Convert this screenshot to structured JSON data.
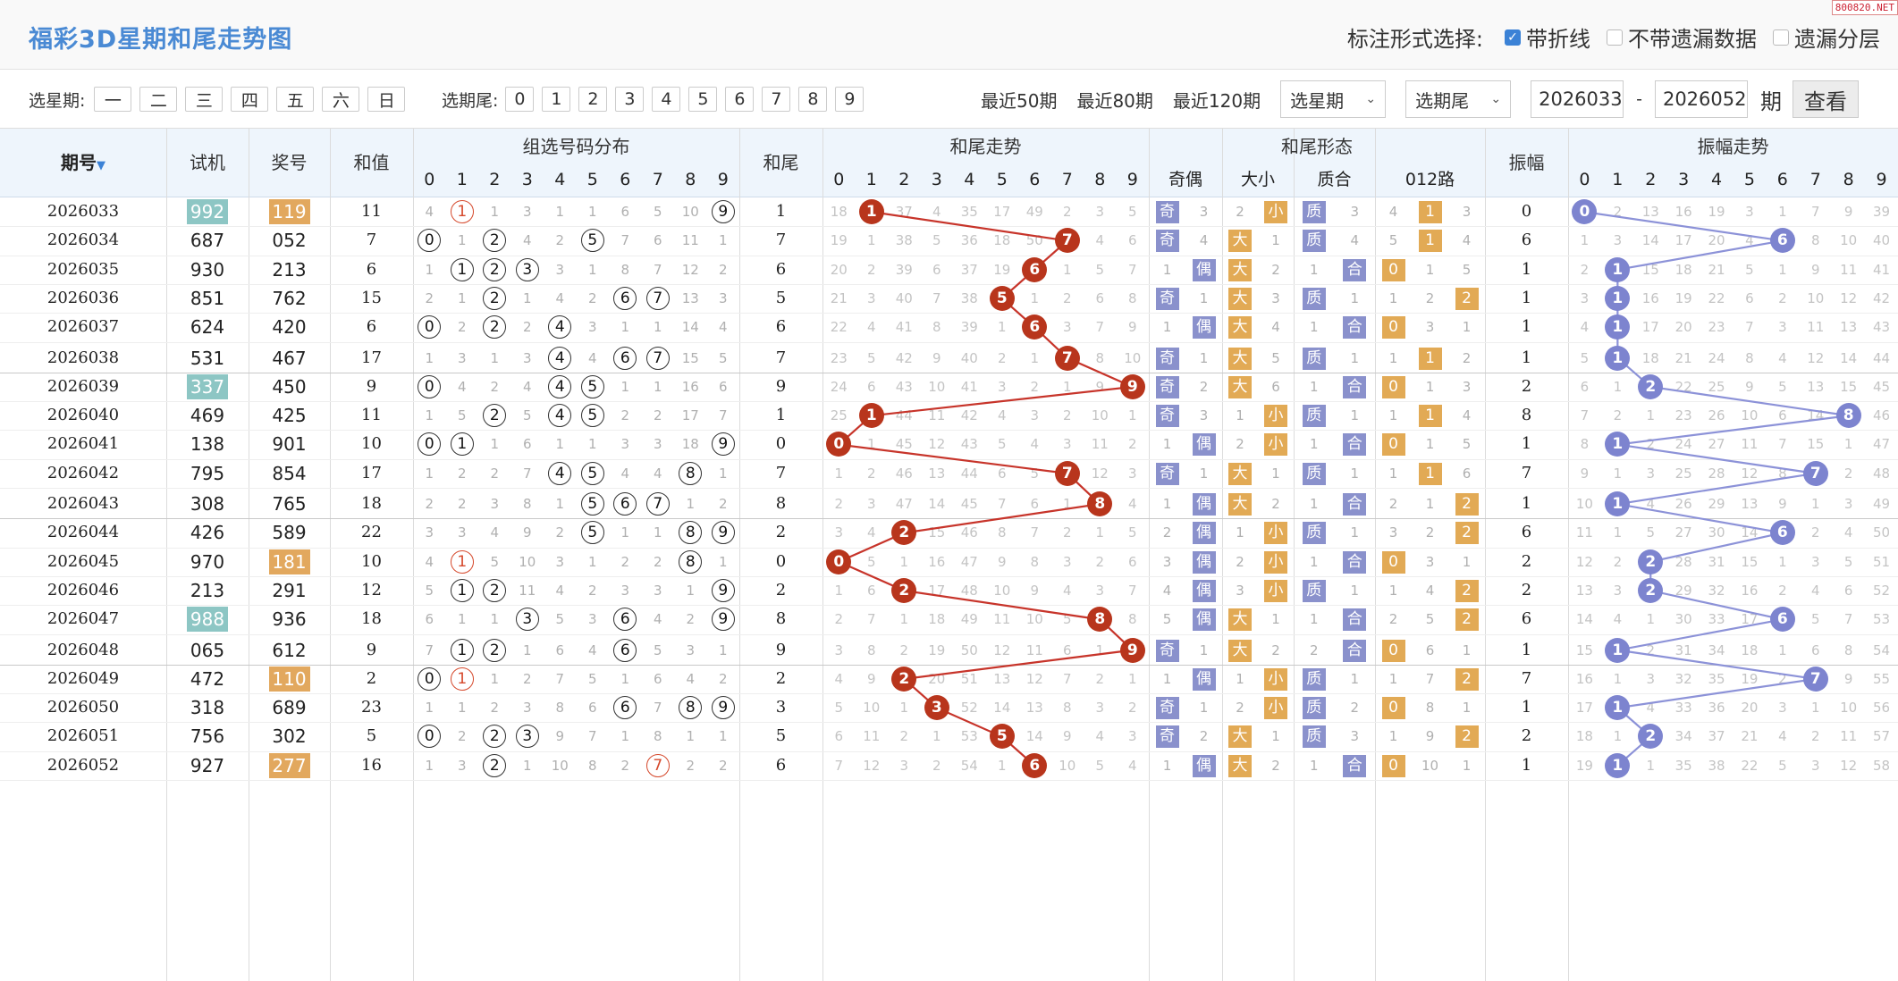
{
  "title": "福彩3D星期和尾走势图",
  "brand": "800820.NET",
  "mode": {
    "label": "标注形式选择:",
    "options": [
      {
        "label": "带折线",
        "checked": true
      },
      {
        "label": "不带遗漏数据",
        "checked": false
      },
      {
        "label": "遗漏分层",
        "checked": false
      }
    ]
  },
  "filters": {
    "week_label": "选星期:",
    "weeks": [
      "一",
      "二",
      "三",
      "四",
      "五",
      "六",
      "日"
    ],
    "tail_label": "选期尾:",
    "tails": [
      "0",
      "1",
      "2",
      "3",
      "4",
      "5",
      "6",
      "7",
      "8",
      "9"
    ],
    "recent": [
      "最近50期",
      "最近80期",
      "最近120期"
    ],
    "select_week": "选星期",
    "select_tail": "选期尾",
    "from": "2026033",
    "dash": "-",
    "to": "2026052",
    "qi": "期",
    "query": "查看"
  },
  "headers": {
    "qihao": "期号",
    "shiji": "试机",
    "jianghao": "奖号",
    "hezhi": "和值",
    "zuxuan": "组选号码分布",
    "hewei": "和尾",
    "hewei_trend": "和尾走势",
    "hewei_shape": "和尾形态",
    "jiou": "奇偶",
    "daxiao": "大小",
    "zhihe": "质合",
    "lu012": "012路",
    "zhenfu": "振幅",
    "zhenfu_trend": "振幅走势",
    "digits": [
      "0",
      "1",
      "2",
      "3",
      "4",
      "5",
      "6",
      "7",
      "8",
      "9"
    ],
    "ten_tick_labels": [
      "0",
      "1",
      "2",
      "3",
      "4",
      "5",
      "6",
      "7",
      "8",
      "9"
    ]
  },
  "rows": [
    {
      "qh": "2026033",
      "sj": "992",
      "sj_hl": true,
      "kj": "119",
      "kj_hl": true,
      "hz": "11",
      "zx": [
        "4",
        "1r",
        "1",
        "3",
        "1",
        "1",
        "6",
        "5",
        "10",
        "9c"
      ],
      "hw": "1",
      "tr": [
        "18",
        "B",
        "37",
        "4",
        "35",
        "17",
        "49",
        "2",
        "3",
        "5"
      ],
      "jo": [
        "T:奇",
        "3"
      ],
      "dx": [
        "2",
        "T:小"
      ],
      "zh": [
        "T:质",
        "3"
      ],
      "lu": [
        "4",
        "T:1",
        "3"
      ],
      "zf": "0",
      "zt": [
        "B",
        "2",
        "13",
        "16",
        "19",
        "3",
        "1",
        "7",
        "9",
        "39"
      ]
    },
    {
      "qh": "2026034",
      "sj": "687",
      "sj_hl": false,
      "kj": "052",
      "kj_hl": false,
      "hz": "7",
      "zx": [
        "0c",
        "1",
        "2c",
        "4",
        "2",
        "5c",
        "7",
        "6",
        "11",
        "1"
      ],
      "hw": "7",
      "tr": [
        "19",
        "1",
        "38",
        "5",
        "36",
        "18",
        "50",
        "B",
        "4",
        "6"
      ],
      "jo": [
        "T:奇",
        "4"
      ],
      "dx": [
        "T:大",
        "1"
      ],
      "zh": [
        "T:质",
        "4"
      ],
      "lu": [
        "5",
        "T:1",
        "4"
      ],
      "zf": "6",
      "zt": [
        "1",
        "3",
        "14",
        "17",
        "20",
        "4",
        "B",
        "8",
        "10",
        "40"
      ]
    },
    {
      "qh": "2026035",
      "sj": "930",
      "sj_hl": false,
      "kj": "213",
      "kj_hl": false,
      "hz": "6",
      "zx": [
        "1",
        "1c",
        "2c",
        "3c",
        "3",
        "1",
        "8",
        "7",
        "12",
        "2"
      ],
      "hw": "6",
      "tr": [
        "20",
        "2",
        "39",
        "6",
        "37",
        "19",
        "B",
        "1",
        "5",
        "7"
      ],
      "jo": [
        "1",
        "T:偶"
      ],
      "dx": [
        "T:大",
        "2"
      ],
      "zh": [
        "1",
        "T:合"
      ],
      "lu": [
        "T:0",
        "1",
        "5"
      ],
      "zf": "1",
      "zt": [
        "2",
        "B",
        "15",
        "18",
        "21",
        "5",
        "1",
        "9",
        "11",
        "41"
      ]
    },
    {
      "qh": "2026036",
      "sj": "851",
      "sj_hl": false,
      "kj": "762",
      "kj_hl": false,
      "hz": "15",
      "zx": [
        "2",
        "1",
        "2c",
        "1",
        "4",
        "2",
        "6c",
        "7c",
        "13",
        "3"
      ],
      "hw": "5",
      "tr": [
        "21",
        "3",
        "40",
        "7",
        "38",
        "B",
        "1",
        "2",
        "6",
        "8"
      ],
      "jo": [
        "T:奇",
        "1"
      ],
      "dx": [
        "T:大",
        "3"
      ],
      "zh": [
        "T:质",
        "1"
      ],
      "lu": [
        "1",
        "2",
        "T:2"
      ],
      "zf": "1",
      "zt": [
        "3",
        "B",
        "16",
        "19",
        "22",
        "6",
        "2",
        "10",
        "12",
        "42"
      ]
    },
    {
      "qh": "2026037",
      "sj": "624",
      "sj_hl": false,
      "kj": "420",
      "kj_hl": false,
      "hz": "6",
      "zx": [
        "0c",
        "2",
        "2c",
        "2",
        "4c",
        "3",
        "1",
        "1",
        "14",
        "4"
      ],
      "hw": "6",
      "tr": [
        "22",
        "4",
        "41",
        "8",
        "39",
        "1",
        "B",
        "3",
        "7",
        "9"
      ],
      "jo": [
        "1",
        "T:偶"
      ],
      "dx": [
        "T:大",
        "4"
      ],
      "zh": [
        "1",
        "T:合"
      ],
      "lu": [
        "T:0",
        "3",
        "1"
      ],
      "zf": "1",
      "zt": [
        "4",
        "B",
        "17",
        "20",
        "23",
        "7",
        "3",
        "11",
        "13",
        "43"
      ]
    },
    {
      "qh": "2026038",
      "sj": "531",
      "sj_hl": false,
      "kj": "467",
      "kj_hl": false,
      "hz": "17",
      "zx": [
        "1",
        "3",
        "1",
        "3",
        "4c",
        "4",
        "6c",
        "7c",
        "15",
        "5"
      ],
      "hw": "7",
      "tr": [
        "23",
        "5",
        "42",
        "9",
        "40",
        "2",
        "1",
        "B",
        "8",
        "10"
      ],
      "jo": [
        "T:奇",
        "1"
      ],
      "dx": [
        "T:大",
        "5"
      ],
      "zh": [
        "T:质",
        "1"
      ],
      "lu": [
        "1",
        "T:1",
        "2"
      ],
      "zf": "1",
      "zt": [
        "5",
        "B",
        "18",
        "21",
        "24",
        "8",
        "4",
        "12",
        "14",
        "44"
      ]
    },
    {
      "qh": "2026039",
      "sj": "337",
      "sj_hl": true,
      "kj": "450",
      "kj_hl": false,
      "hz": "9",
      "zx": [
        "0c",
        "4",
        "2",
        "4",
        "4c",
        "5c",
        "1",
        "1",
        "16",
        "6"
      ],
      "hw": "9",
      "tr": [
        "24",
        "6",
        "43",
        "10",
        "41",
        "3",
        "2",
        "1",
        "9",
        "B"
      ],
      "jo": [
        "T:奇",
        "2"
      ],
      "dx": [
        "T:大",
        "6"
      ],
      "zh": [
        "1",
        "T:合"
      ],
      "lu": [
        "T:0",
        "1",
        "3"
      ],
      "zf": "2",
      "zt": [
        "6",
        "1",
        "B",
        "22",
        "25",
        "9",
        "5",
        "13",
        "15",
        "45"
      ]
    },
    {
      "qh": "2026040",
      "sj": "469",
      "sj_hl": false,
      "kj": "425",
      "kj_hl": false,
      "hz": "11",
      "zx": [
        "1",
        "5",
        "2c",
        "5",
        "4c",
        "5c",
        "2",
        "2",
        "17",
        "7"
      ],
      "hw": "1",
      "tr": [
        "25",
        "B",
        "44",
        "11",
        "42",
        "4",
        "3",
        "2",
        "10",
        "1"
      ],
      "jo": [
        "T:奇",
        "3"
      ],
      "dx": [
        "1",
        "T:小"
      ],
      "zh": [
        "T:质",
        "1"
      ],
      "lu": [
        "1",
        "T:1",
        "4"
      ],
      "zf": "8",
      "zt": [
        "7",
        "2",
        "1",
        "23",
        "26",
        "10",
        "6",
        "14",
        "B",
        "46"
      ]
    },
    {
      "qh": "2026041",
      "sj": "138",
      "sj_hl": false,
      "kj": "901",
      "kj_hl": false,
      "hz": "10",
      "zx": [
        "0c",
        "1c",
        "1",
        "6",
        "1",
        "1",
        "3",
        "3",
        "18",
        "9c"
      ],
      "hw": "0",
      "tr": [
        "B",
        "1",
        "45",
        "12",
        "43",
        "5",
        "4",
        "3",
        "11",
        "2"
      ],
      "jo": [
        "1",
        "T:偶"
      ],
      "dx": [
        "2",
        "T:小"
      ],
      "zh": [
        "1",
        "T:合"
      ],
      "lu": [
        "T:0",
        "1",
        "5"
      ],
      "zf": "1",
      "zt": [
        "8",
        "B",
        "2",
        "24",
        "27",
        "11",
        "7",
        "15",
        "1",
        "47"
      ]
    },
    {
      "qh": "2026042",
      "sj": "795",
      "sj_hl": false,
      "kj": "854",
      "kj_hl": false,
      "hz": "17",
      "zx": [
        "1",
        "2",
        "2",
        "7",
        "4c",
        "5c",
        "4",
        "4",
        "8c",
        "1"
      ],
      "hw": "7",
      "tr": [
        "1",
        "2",
        "46",
        "13",
        "44",
        "6",
        "5",
        "B",
        "12",
        "3"
      ],
      "jo": [
        "T:奇",
        "1"
      ],
      "dx": [
        "T:大",
        "1"
      ],
      "zh": [
        "T:质",
        "1"
      ],
      "lu": [
        "1",
        "T:1",
        "6"
      ],
      "zf": "7",
      "zt": [
        "9",
        "1",
        "3",
        "25",
        "28",
        "12",
        "8",
        "B",
        "2",
        "48"
      ]
    },
    {
      "qh": "2026043",
      "sj": "308",
      "sj_hl": false,
      "kj": "765",
      "kj_hl": false,
      "hz": "18",
      "zx": [
        "2",
        "2",
        "3",
        "8",
        "1",
        "5c",
        "6c",
        "7c",
        "1",
        "2"
      ],
      "hw": "8",
      "tr": [
        "2",
        "3",
        "47",
        "14",
        "45",
        "7",
        "6",
        "1",
        "B",
        "4"
      ],
      "jo": [
        "1",
        "T:偶"
      ],
      "dx": [
        "T:大",
        "2"
      ],
      "zh": [
        "1",
        "T:合"
      ],
      "lu": [
        "2",
        "1",
        "T:2"
      ],
      "zf": "1",
      "zt": [
        "10",
        "B",
        "4",
        "26",
        "29",
        "13",
        "9",
        "1",
        "3",
        "49"
      ]
    },
    {
      "qh": "2026044",
      "sj": "426",
      "sj_hl": false,
      "kj": "589",
      "kj_hl": false,
      "hz": "22",
      "zx": [
        "3",
        "3",
        "4",
        "9",
        "2",
        "5c",
        "1",
        "1",
        "8c",
        "9c"
      ],
      "hw": "2",
      "tr": [
        "3",
        "4",
        "B",
        "15",
        "46",
        "8",
        "7",
        "2",
        "1",
        "5"
      ],
      "jo": [
        "2",
        "T:偶"
      ],
      "dx": [
        "1",
        "T:小"
      ],
      "zh": [
        "T:质",
        "1"
      ],
      "lu": [
        "3",
        "2",
        "T:2"
      ],
      "zf": "6",
      "zt": [
        "11",
        "1",
        "5",
        "27",
        "30",
        "14",
        "B",
        "2",
        "4",
        "50"
      ]
    },
    {
      "qh": "2026045",
      "sj": "970",
      "sj_hl": false,
      "kj": "181",
      "kj_hl": true,
      "hz": "10",
      "zx": [
        "4",
        "1r",
        "5",
        "10",
        "3",
        "1",
        "2",
        "2",
        "8c",
        "1"
      ],
      "hw": "0",
      "tr": [
        "B",
        "5",
        "1",
        "16",
        "47",
        "9",
        "8",
        "3",
        "2",
        "6"
      ],
      "jo": [
        "3",
        "T:偶"
      ],
      "dx": [
        "2",
        "T:小"
      ],
      "zh": [
        "1",
        "T:合"
      ],
      "lu": [
        "T:0",
        "3",
        "1"
      ],
      "zf": "2",
      "zt": [
        "12",
        "2",
        "B",
        "28",
        "31",
        "15",
        "1",
        "3",
        "5",
        "51"
      ]
    },
    {
      "qh": "2026046",
      "sj": "213",
      "sj_hl": false,
      "kj": "291",
      "kj_hl": false,
      "hz": "12",
      "zx": [
        "5",
        "1c",
        "2c",
        "11",
        "4",
        "2",
        "3",
        "3",
        "1",
        "9c"
      ],
      "hw": "2",
      "tr": [
        "1",
        "6",
        "B",
        "17",
        "48",
        "10",
        "9",
        "4",
        "3",
        "7"
      ],
      "jo": [
        "4",
        "T:偶"
      ],
      "dx": [
        "3",
        "T:小"
      ],
      "zh": [
        "T:质",
        "1"
      ],
      "lu": [
        "1",
        "4",
        "T:2"
      ],
      "zf": "2",
      "zt": [
        "13",
        "3",
        "B",
        "29",
        "32",
        "16",
        "2",
        "4",
        "6",
        "52"
      ]
    },
    {
      "qh": "2026047",
      "sj": "988",
      "sj_hl": true,
      "kj": "936",
      "kj_hl": false,
      "hz": "18",
      "zx": [
        "6",
        "1",
        "1",
        "3c",
        "5",
        "3",
        "6c",
        "4",
        "2",
        "9c"
      ],
      "hw": "8",
      "tr": [
        "2",
        "7",
        "1",
        "18",
        "49",
        "11",
        "10",
        "5",
        "B",
        "8"
      ],
      "jo": [
        "5",
        "T:偶"
      ],
      "dx": [
        "T:大",
        "1"
      ],
      "zh": [
        "1",
        "T:合"
      ],
      "lu": [
        "2",
        "5",
        "T:2"
      ],
      "zf": "6",
      "zt": [
        "14",
        "4",
        "1",
        "30",
        "33",
        "17",
        "B",
        "5",
        "7",
        "53"
      ]
    },
    {
      "qh": "2026048",
      "sj": "065",
      "sj_hl": false,
      "kj": "612",
      "kj_hl": false,
      "hz": "9",
      "zx": [
        "7",
        "1c",
        "2c",
        "1",
        "6",
        "4",
        "6c",
        "5",
        "3",
        "1"
      ],
      "hw": "9",
      "tr": [
        "3",
        "8",
        "2",
        "19",
        "50",
        "12",
        "11",
        "6",
        "1",
        "B"
      ],
      "jo": [
        "T:奇",
        "1"
      ],
      "dx": [
        "T:大",
        "2"
      ],
      "zh": [
        "2",
        "T:合"
      ],
      "lu": [
        "T:0",
        "6",
        "1"
      ],
      "zf": "1",
      "zt": [
        "15",
        "B",
        "2",
        "31",
        "34",
        "18",
        "1",
        "6",
        "8",
        "54"
      ]
    },
    {
      "qh": "2026049",
      "sj": "472",
      "sj_hl": false,
      "kj": "110",
      "kj_hl": true,
      "hz": "2",
      "zx": [
        "0c",
        "1r",
        "1",
        "2",
        "7",
        "5",
        "1",
        "6",
        "4",
        "2"
      ],
      "hw": "2",
      "tr": [
        "4",
        "9",
        "B",
        "20",
        "51",
        "13",
        "12",
        "7",
        "2",
        "1"
      ],
      "jo": [
        "1",
        "T:偶"
      ],
      "dx": [
        "1",
        "T:小"
      ],
      "zh": [
        "T:质",
        "1"
      ],
      "lu": [
        "1",
        "7",
        "T:2"
      ],
      "zf": "7",
      "zt": [
        "16",
        "1",
        "3",
        "32",
        "35",
        "19",
        "2",
        "B",
        "9",
        "55"
      ]
    },
    {
      "qh": "2026050",
      "sj": "318",
      "sj_hl": false,
      "kj": "689",
      "kj_hl": false,
      "hz": "23",
      "zx": [
        "1",
        "1",
        "2",
        "3",
        "8",
        "6",
        "6c",
        "7",
        "8c",
        "9c"
      ],
      "hw": "3",
      "tr": [
        "5",
        "10",
        "1",
        "B",
        "52",
        "14",
        "13",
        "8",
        "3",
        "2"
      ],
      "jo": [
        "T:奇",
        "1"
      ],
      "dx": [
        "2",
        "T:小"
      ],
      "zh": [
        "T:质",
        "2"
      ],
      "lu": [
        "T:0",
        "8",
        "1"
      ],
      "zf": "1",
      "zt": [
        "17",
        "B",
        "4",
        "33",
        "36",
        "20",
        "3",
        "1",
        "10",
        "56"
      ]
    },
    {
      "qh": "2026051",
      "sj": "756",
      "sj_hl": false,
      "kj": "302",
      "kj_hl": false,
      "hz": "5",
      "zx": [
        "0c",
        "2",
        "2c",
        "3c",
        "9",
        "7",
        "1",
        "8",
        "1",
        "1"
      ],
      "hw": "5",
      "tr": [
        "6",
        "11",
        "2",
        "1",
        "53",
        "B",
        "14",
        "9",
        "4",
        "3"
      ],
      "jo": [
        "T:奇",
        "2"
      ],
      "dx": [
        "T:大",
        "1"
      ],
      "zh": [
        "T:质",
        "3"
      ],
      "lu": [
        "1",
        "9",
        "T:2"
      ],
      "zf": "2",
      "zt": [
        "18",
        "1",
        "B",
        "34",
        "37",
        "21",
        "4",
        "2",
        "11",
        "57"
      ]
    },
    {
      "qh": "2026052",
      "sj": "927",
      "sj_hl": false,
      "kj": "277",
      "kj_hl": true,
      "hz": "16",
      "zx": [
        "1",
        "3",
        "2c",
        "1",
        "10",
        "8",
        "2",
        "7r",
        "2",
        "2"
      ],
      "hw": "6",
      "tr": [
        "7",
        "12",
        "3",
        "2",
        "54",
        "1",
        "B",
        "10",
        "5",
        "4"
      ],
      "jo": [
        "1",
        "T:偶"
      ],
      "dx": [
        "T:大",
        "2"
      ],
      "zh": [
        "1",
        "T:合"
      ],
      "lu": [
        "T:0",
        "10",
        "1"
      ],
      "zf": "1",
      "zt": [
        "19",
        "B",
        "1",
        "35",
        "38",
        "22",
        "5",
        "3",
        "12",
        "58"
      ]
    }
  ]
}
